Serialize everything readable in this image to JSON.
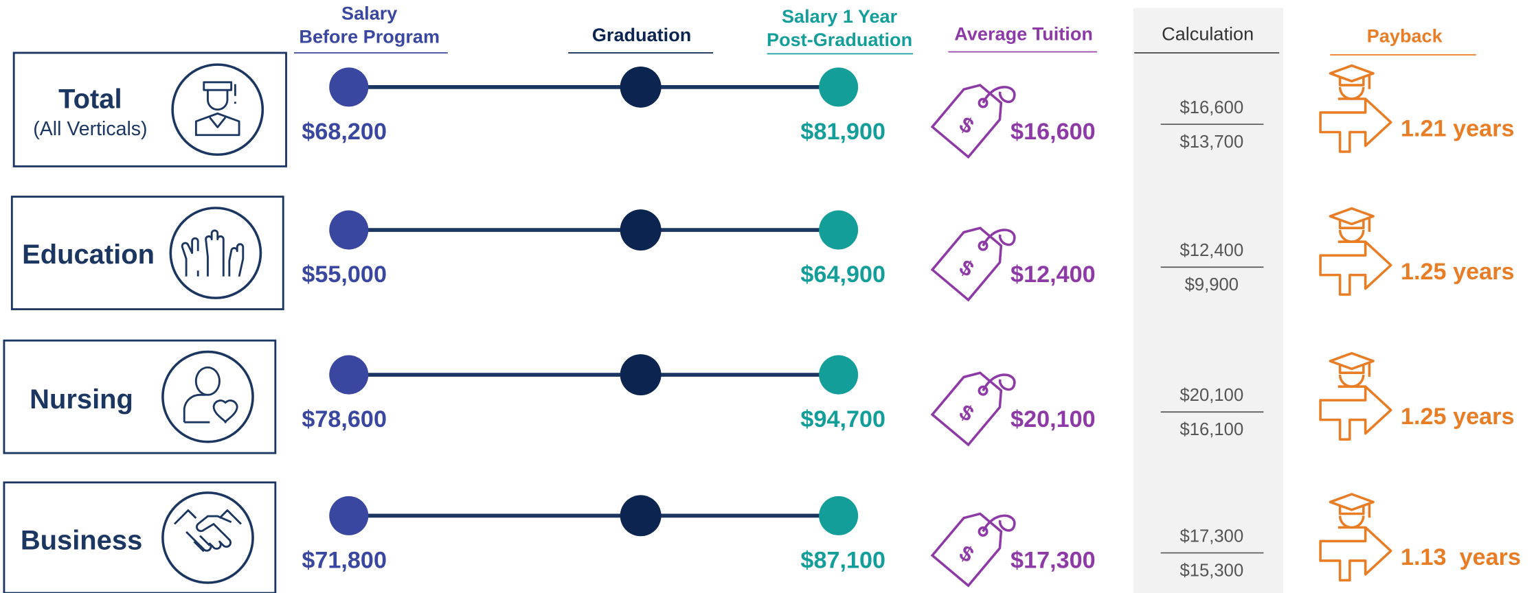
{
  "headers": {
    "before": [
      "Salary",
      "Before Program"
    ],
    "graduation": "Graduation",
    "after": [
      "Salary 1 Year",
      "Post-Graduation"
    ],
    "tuition": "Average Tuition",
    "calculation": "Calculation",
    "payback": "Payback"
  },
  "rows": [
    {
      "name": "Total",
      "subname": "(All Verticals)",
      "before": "$68,200",
      "after": "$81,900",
      "tuition": "$16,600",
      "calc_top": "$16,600",
      "calc_bottom": "$13,700",
      "payback": "1.21 years"
    },
    {
      "name": "Education",
      "before": "$55,000",
      "after": "$64,900",
      "tuition": "$12,400",
      "calc_top": "$12,400",
      "calc_bottom": "$9,900",
      "payback": "1.25 years"
    },
    {
      "name": "Nursing",
      "before": "$78,600",
      "after": "$94,700",
      "tuition": "$20,100",
      "calc_top": "$20,100",
      "calc_bottom": "$16,100",
      "payback": "1.25 years"
    },
    {
      "name": "Business",
      "before": "$71,800",
      "after": "$87,100",
      "tuition": "$17,300",
      "calc_top": "$17,300",
      "calc_bottom": "$15,300",
      "payback": "1.13  years"
    }
  ]
}
